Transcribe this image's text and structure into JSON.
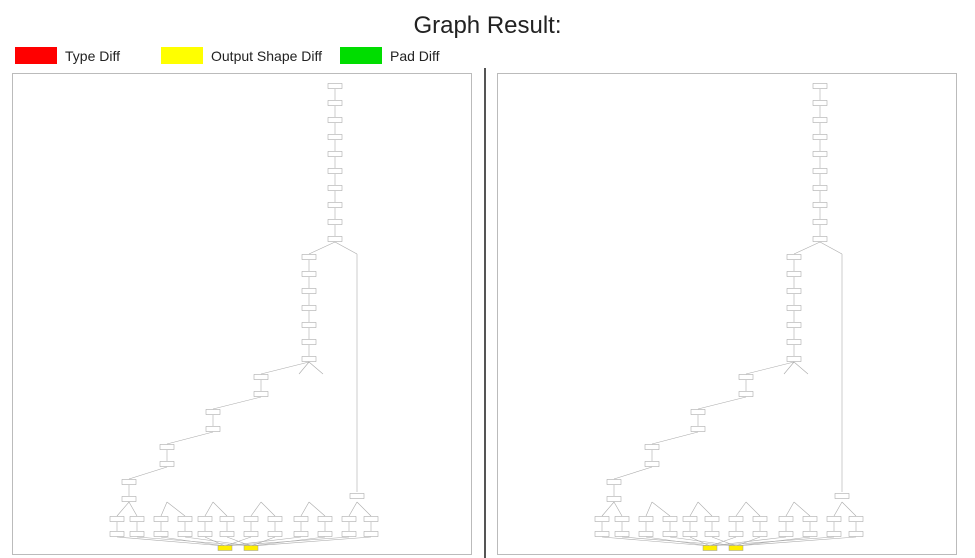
{
  "page_title": "Graph Result:",
  "legend": [
    {
      "label": "Type Diff",
      "color": "#ff0000"
    },
    {
      "label": "Output Shape Diff",
      "color": "#ffff00"
    },
    {
      "label": "Pad Diff",
      "color": "#00dd00"
    }
  ],
  "colors": {
    "node_fill": "#ffffff",
    "node_stroke": "#999999",
    "edge": "#aaaaaa",
    "highlight": "#ffee00"
  }
}
